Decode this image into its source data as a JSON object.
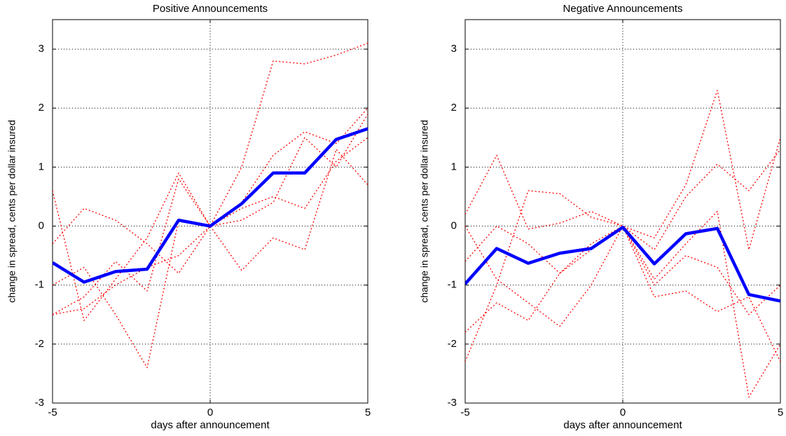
{
  "chart_data": [
    {
      "type": "line",
      "title": "Positive Announcements",
      "xlabel": "days after announcement",
      "ylabel": "change in spread, cents per dollar insured",
      "x": [
        -5,
        -4,
        -3,
        -2,
        -1,
        0,
        1,
        2,
        3,
        4,
        5
      ],
      "xlim": [
        -5,
        5
      ],
      "xticks": [
        -5,
        0,
        5
      ],
      "ylim": [
        -3,
        3.5
      ],
      "yticks": [
        -3,
        -2,
        -1,
        0,
        1,
        2,
        3
      ],
      "grid": true,
      "series": [
        {
          "color": "#ff0000",
          "linestyle": "dotted",
          "values": [
            -1.5,
            -1.4,
            -1.0,
            -0.7,
            -0.5,
            0,
            1.0,
            2.8,
            2.75,
            2.9,
            3.1
          ]
        },
        {
          "color": "#ff0000",
          "linestyle": "dotted",
          "values": [
            0.6,
            -1.6,
            -0.9,
            -0.2,
            0.9,
            0,
            0.4,
            1.2,
            1.6,
            1.4,
            2.0
          ]
        },
        {
          "color": "#ff0000",
          "linestyle": "dotted",
          "values": [
            -0.3,
            0.3,
            0.1,
            -0.3,
            -0.8,
            0,
            -0.75,
            -0.2,
            -0.4,
            1.3,
            0.7
          ]
        },
        {
          "color": "#ff0000",
          "linestyle": "dotted",
          "values": [
            -1.0,
            -0.7,
            -1.5,
            -2.4,
            0.1,
            0,
            0.1,
            0.4,
            1.5,
            1.0,
            1.9
          ]
        },
        {
          "color": "#ff0000",
          "linestyle": "dotted",
          "values": [
            -1.5,
            -1.2,
            -0.6,
            -1.1,
            0.8,
            0,
            0.3,
            0.5,
            0.3,
            1.1,
            1.5
          ]
        },
        {
          "color": "#0000ff",
          "linestyle": "solid",
          "values": [
            -0.62,
            -0.95,
            -0.77,
            -0.73,
            0.1,
            0,
            0.38,
            0.9,
            0.9,
            1.47,
            1.65
          ]
        }
      ]
    },
    {
      "type": "line",
      "title": "Negative Announcements",
      "xlabel": "days after announcement",
      "ylabel": "change in spread, cents per dollar insured",
      "x": [
        -5,
        -4,
        -3,
        -2,
        -1,
        0,
        1,
        2,
        3,
        4,
        5
      ],
      "xlim": [
        -5,
        5
      ],
      "xticks": [
        -5,
        0,
        5
      ],
      "ylim": [
        -3,
        3.5
      ],
      "yticks": [
        -3,
        -2,
        -1,
        0,
        1,
        2,
        3
      ],
      "grid": true,
      "series": [
        {
          "color": "#ff0000",
          "linestyle": "dotted",
          "values": [
            0.2,
            1.2,
            -0.05,
            0.05,
            0.25,
            0,
            -0.2,
            0.7,
            2.3,
            -0.4,
            1.5
          ]
        },
        {
          "color": "#ff0000",
          "linestyle": "dotted",
          "values": [
            -2.3,
            -1.0,
            0.6,
            0.55,
            0.15,
            0,
            -0.4,
            0.5,
            1.05,
            0.6,
            1.3
          ]
        },
        {
          "color": "#ff0000",
          "linestyle": "dotted",
          "values": [
            -0.6,
            0.0,
            -0.3,
            -0.8,
            -0.3,
            0,
            -1.2,
            -1.1,
            -1.45,
            -1.2,
            -2.3
          ]
        },
        {
          "color": "#ff0000",
          "linestyle": "dotted",
          "values": [
            -1.8,
            -1.3,
            -1.6,
            -0.8,
            -0.4,
            0,
            -0.9,
            -0.3,
            0.25,
            -2.9,
            -2.0
          ]
        },
        {
          "color": "#ff0000",
          "linestyle": "dotted",
          "values": [
            0.0,
            -0.9,
            -1.3,
            -1.7,
            -1.0,
            0,
            -1.0,
            -0.5,
            -0.7,
            -1.5,
            -1.0
          ]
        },
        {
          "color": "#0000ff",
          "linestyle": "solid",
          "values": [
            -0.98,
            -0.38,
            -0.63,
            -0.46,
            -0.38,
            -0.02,
            -0.64,
            -0.13,
            -0.04,
            -1.16,
            -1.27
          ]
        }
      ]
    }
  ]
}
